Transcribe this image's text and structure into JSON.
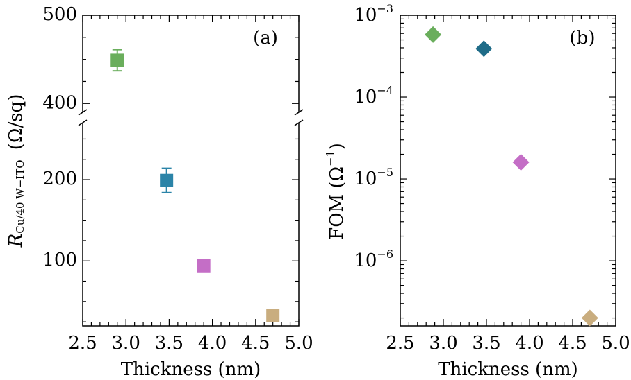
{
  "chart_data": [
    {
      "type": "scatter",
      "panel_label": "(a)",
      "xlabel": "Thickness (nm)",
      "ylabel": {
        "symbol": "R",
        "subscript": "Cu/40 W−ITO",
        "units": "(Ω/sq)"
      },
      "xlim": [
        2.5,
        5.0
      ],
      "x_ticks": [
        2.5,
        3.0,
        3.5,
        4.0,
        4.5,
        5.0
      ],
      "x_tick_labels": [
        "2.5",
        "3.0",
        "3.5",
        "4.0",
        "4.5",
        "5.0"
      ],
      "broken_y_axis": true,
      "upper_ylim": [
        390,
        500
      ],
      "upper_y_ticks": [
        400,
        500
      ],
      "upper_y_tick_labels": [
        "400",
        "500"
      ],
      "lower_ylim": [
        20,
        270
      ],
      "lower_y_ticks": [
        100,
        200
      ],
      "lower_y_tick_labels": [
        "100",
        "200"
      ],
      "marker": "square",
      "points": [
        {
          "x": 2.9,
          "y": 449,
          "err": 12,
          "color": "#6aae5c"
        },
        {
          "x": 3.47,
          "y": 199,
          "err": 15,
          "color": "#2b84a8"
        },
        {
          "x": 3.9,
          "y": 94,
          "err": 0,
          "color": "#c46ec6"
        },
        {
          "x": 4.7,
          "y": 33,
          "err": 0,
          "color": "#c9ad7f"
        }
      ]
    },
    {
      "type": "scatter",
      "panel_label": "(b)",
      "xlabel": "Thickness (nm)",
      "ylabel": {
        "text": "FOM",
        "units_base": "(Ω",
        "units_exp": "−1",
        "units_close": ")"
      },
      "yscale": "log",
      "xlim": [
        2.5,
        5.0
      ],
      "x_ticks": [
        2.5,
        3.0,
        3.5,
        4.0,
        4.5,
        5.0
      ],
      "x_tick_labels": [
        "2.5",
        "3.0",
        "3.5",
        "4.0",
        "4.5",
        "5.0"
      ],
      "ylim": [
        1.6e-07,
        0.001
      ],
      "y_ticks": [
        1e-06,
        1e-05,
        0.0001,
        0.001
      ],
      "y_tick_labels": [
        {
          "base": "10",
          "exp": "−6"
        },
        {
          "base": "10",
          "exp": "−5"
        },
        {
          "base": "10",
          "exp": "−4"
        },
        {
          "base": "10",
          "exp": "−3"
        }
      ],
      "marker": "diamond",
      "points": [
        {
          "x": 2.88,
          "y": 0.00058,
          "color": "#6aae5c"
        },
        {
          "x": 3.47,
          "y": 0.00039,
          "color": "#1f6c88"
        },
        {
          "x": 3.9,
          "y": 1.6e-05,
          "color": "#c46ec6"
        },
        {
          "x": 4.7,
          "y": 2e-07,
          "color": "#c9ad7f"
        }
      ]
    }
  ]
}
